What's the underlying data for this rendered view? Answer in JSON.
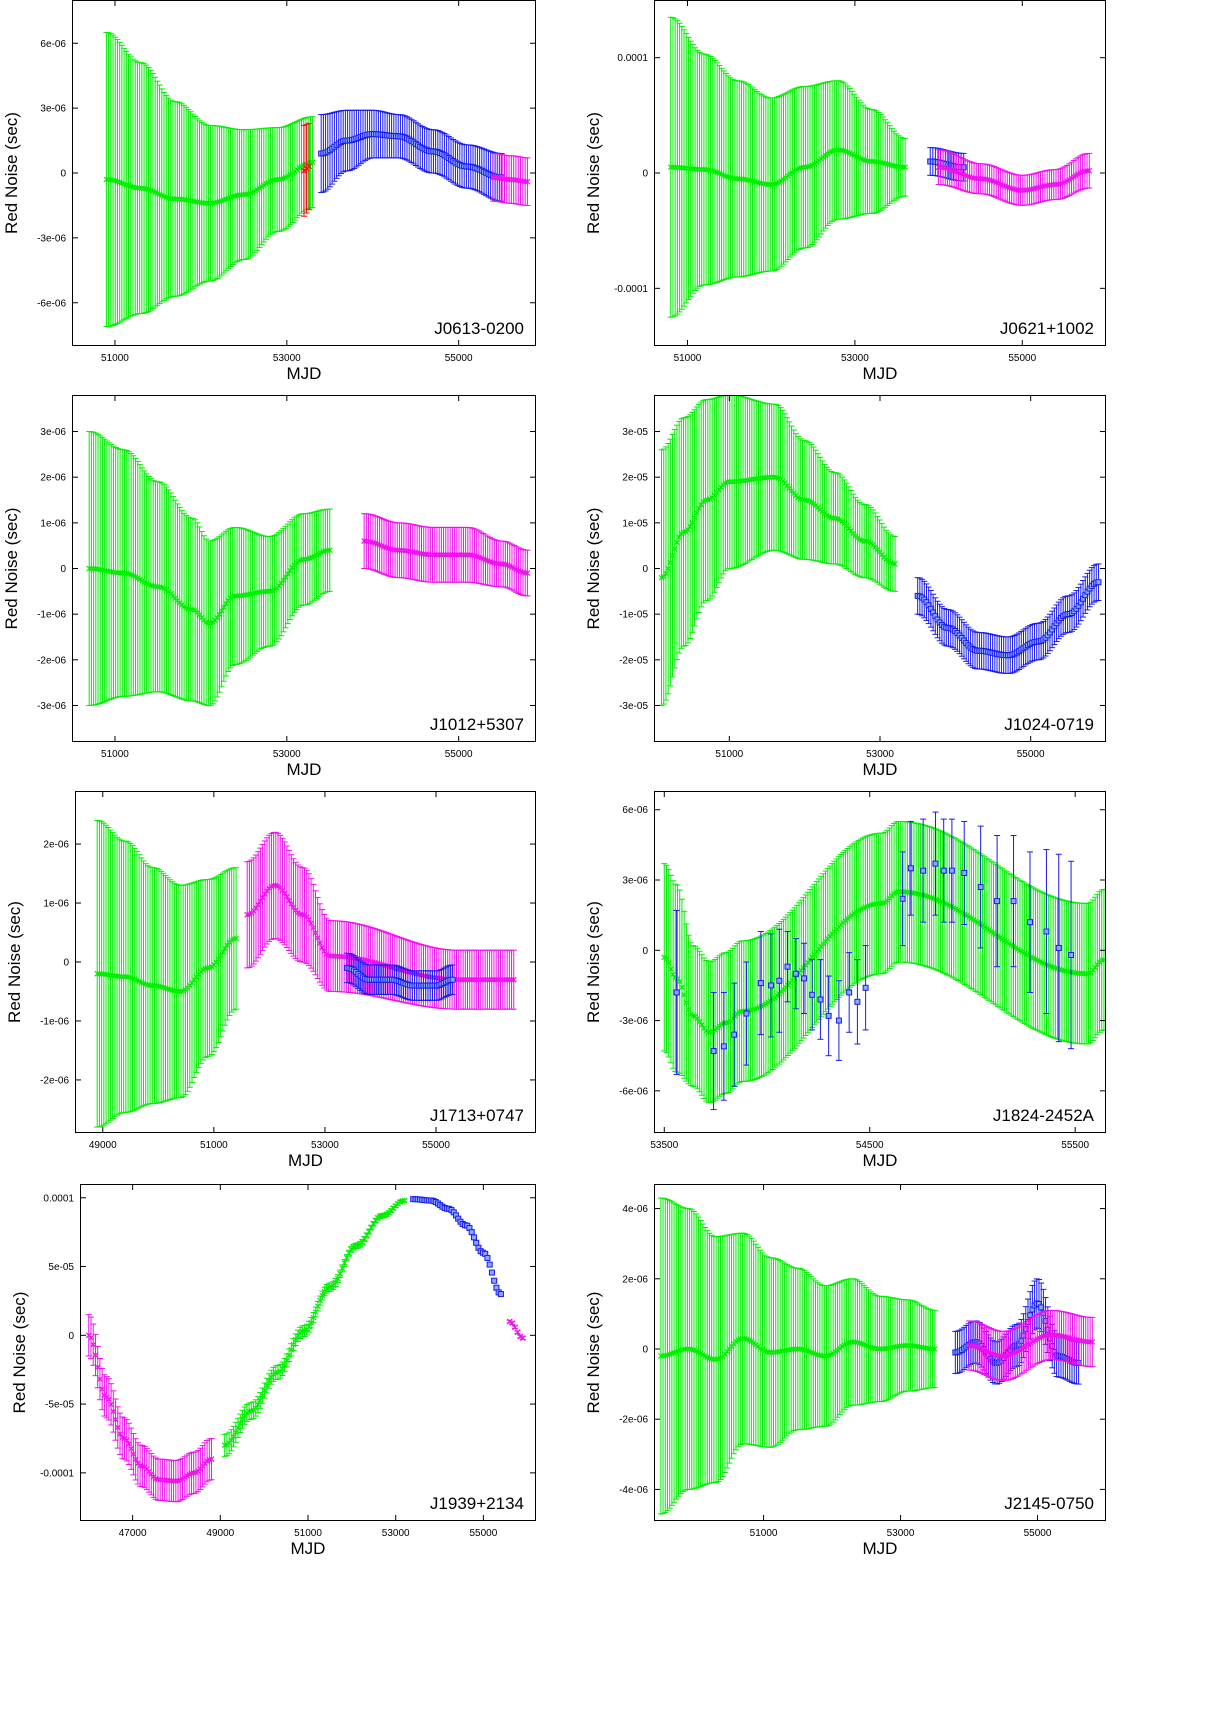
{
  "figure": {
    "panels_layout": "4 rows x 2 columns"
  },
  "colors": {
    "green": "#00ee00",
    "blue": "#1a1aee",
    "magenta": "#ee11ee",
    "red": "#ee1111"
  },
  "chart_data": [
    {
      "type": "scatter",
      "label": "J0613-0200",
      "xlabel": "MJD",
      "ylabel": "Red Noise (sec)",
      "xlim": [
        50500,
        55900
      ],
      "ylim": [
        -8e-06,
        8e-06
      ],
      "xticks": [
        51000,
        53000,
        55000
      ],
      "xtick_labels": [
        "51000",
        "53000",
        "55000"
      ],
      "yticks": [
        -6e-06,
        -3e-06,
        0,
        3e-06,
        6e-06
      ],
      "ytick_labels": [
        "-6e-06",
        "-3e-06",
        "0",
        "3e-06",
        "6e-06"
      ],
      "series": [
        {
          "color": "green",
          "x": [
            50900,
            51300,
            51700,
            52100,
            52500,
            52900,
            53300
          ],
          "y": [
            -3e-07,
            -7e-07,
            -1.2e-06,
            -1.4e-06,
            -1e-06,
            -3e-07,
            5e-07
          ],
          "err": [
            6.8e-06,
            5.8e-06,
            4.5e-06,
            3.6e-06,
            3e-06,
            2.4e-06,
            2.1e-06
          ]
        },
        {
          "color": "red",
          "x": [
            53200,
            53260
          ],
          "y": [
            1e-07,
            3e-07
          ],
          "err": [
            2.1e-06,
            2e-06
          ]
        },
        {
          "color": "blue",
          "x": [
            53400,
            53700,
            54000,
            54300,
            54700,
            55100,
            55500
          ],
          "y": [
            9e-07,
            1.5e-06,
            1.8e-06,
            1.7e-06,
            1e-06,
            3e-07,
            -2e-07
          ],
          "err": [
            1.8e-06,
            1.4e-06,
            1.1e-06,
            1e-06,
            1e-06,
            1e-06,
            1.1e-06
          ]
        },
        {
          "color": "magenta",
          "x": [
            55400,
            55600,
            55800
          ],
          "y": [
            -2e-07,
            -3e-07,
            -4e-07
          ],
          "err": [
            1.1e-06,
            1.1e-06,
            1.1e-06
          ]
        }
      ]
    },
    {
      "type": "scatter",
      "label": "J0621+1002",
      "xlabel": "MJD",
      "ylabel": "Red Noise (sec)",
      "xlim": [
        50600,
        56000
      ],
      "ylim": [
        -0.00015,
        0.00015
      ],
      "xticks": [
        51000,
        53000,
        55000
      ],
      "xtick_labels": [
        "51000",
        "53000",
        "55000"
      ],
      "yticks": [
        -0.0001,
        0,
        0.0001
      ],
      "ytick_labels": [
        "-0.0001",
        "0",
        "0.0001"
      ],
      "series": [
        {
          "color": "green",
          "x": [
            50800,
            51200,
            51600,
            52000,
            52400,
            52800,
            53200,
            53600
          ],
          "y": [
            5e-06,
            3e-06,
            -5e-06,
            -1e-05,
            5e-06,
            2e-05,
            1e-05,
            5e-06
          ],
          "err": [
            0.00013,
            0.0001,
            8.5e-05,
            7.5e-05,
            7e-05,
            6e-05,
            4.5e-05,
            2.5e-05
          ]
        },
        {
          "color": "blue",
          "x": [
            53900,
            54300
          ],
          "y": [
            1e-05,
            5e-06
          ],
          "err": [
            1.2e-05,
            1.2e-05
          ]
        },
        {
          "color": "magenta",
          "x": [
            54000,
            54500,
            55000,
            55400,
            55800
          ],
          "y": [
            5e-06,
            -5e-06,
            -1.5e-05,
            -1e-05,
            2e-06
          ],
          "err": [
            1.5e-05,
            1.3e-05,
            1.3e-05,
            1.3e-05,
            1.5e-05
          ]
        }
      ]
    },
    {
      "type": "scatter",
      "label": "J1012+5307",
      "xlabel": "MJD",
      "ylabel": "Red Noise (sec)",
      "xlim": [
        50500,
        55900
      ],
      "ylim": [
        -3.8e-06,
        3.8e-06
      ],
      "xticks": [
        51000,
        53000,
        55000
      ],
      "xtick_labels": [
        "51000",
        "53000",
        "55000"
      ],
      "yticks": [
        -3e-06,
        -2e-06,
        -1e-06,
        0,
        1e-06,
        2e-06,
        3e-06
      ],
      "ytick_labels": [
        "-3e-06",
        "-2e-06",
        "-1e-06",
        "0",
        "1e-06",
        "2e-06",
        "3e-06"
      ],
      "series": [
        {
          "color": "green",
          "x": [
            50700,
            51100,
            51500,
            51900,
            52100,
            52400,
            52800,
            53200,
            53500
          ],
          "y": [
            0,
            -1e-07,
            -4e-07,
            -9e-07,
            -1.2e-06,
            -6e-07,
            -5e-07,
            2e-07,
            4e-07
          ],
          "err": [
            3e-06,
            2.7e-06,
            2.3e-06,
            2e-06,
            1.8e-06,
            1.5e-06,
            1.2e-06,
            1e-06,
            9e-07
          ]
        },
        {
          "color": "magenta",
          "x": [
            53900,
            54300,
            54700,
            55100,
            55500,
            55800
          ],
          "y": [
            6e-07,
            4e-07,
            3e-07,
            3e-07,
            1e-07,
            -1e-07
          ],
          "err": [
            6e-07,
            6e-07,
            6e-07,
            6e-07,
            5e-07,
            5e-07
          ]
        }
      ]
    },
    {
      "type": "scatter",
      "label": "J1024-0719",
      "xlabel": "MJD",
      "ylabel": "Red Noise (sec)",
      "xlim": [
        50000,
        56000
      ],
      "ylim": [
        -3.8e-05,
        3.8e-05
      ],
      "xticks": [
        51000,
        53000,
        55000
      ],
      "xtick_labels": [
        "51000",
        "53000",
        "55000"
      ],
      "yticks": [
        -3e-05,
        -2e-05,
        -1e-05,
        0,
        1e-05,
        2e-05,
        3e-05
      ],
      "ytick_labels": [
        "-3e-05",
        "-2e-05",
        "-1e-05",
        "0",
        "1e-05",
        "2e-05",
        "3e-05"
      ],
      "series": [
        {
          "color": "green",
          "x": [
            50100,
            50400,
            50700,
            51000,
            51600,
            52000,
            52400,
            52800,
            53200
          ],
          "y": [
            -2e-06,
            8e-06,
            1.5e-05,
            1.9e-05,
            2e-05,
            1.5e-05,
            1.1e-05,
            6e-06,
            1e-06
          ],
          "err": [
            2.8e-05,
            2.5e-05,
            2.2e-05,
            1.9e-05,
            1.6e-05,
            1.3e-05,
            1e-05,
            8e-06,
            6e-06
          ]
        },
        {
          "color": "blue",
          "x": [
            53500,
            53900,
            54300,
            54700,
            55100,
            55500,
            55900
          ],
          "y": [
            -6e-06,
            -1.3e-05,
            -1.8e-05,
            -1.9e-05,
            -1.6e-05,
            -1e-05,
            -3e-06
          ],
          "err": [
            4e-06,
            4e-06,
            4e-06,
            4e-06,
            4e-06,
            4e-06,
            4e-06
          ]
        }
      ]
    },
    {
      "type": "scatter",
      "label": "J1713+0747",
      "xlabel": "MJD",
      "ylabel": "Red Noise (sec)",
      "xlim": [
        48500,
        56800
      ],
      "ylim": [
        -2.9e-06,
        2.9e-06
      ],
      "xticks": [
        49000,
        51000,
        53000,
        55000
      ],
      "xtick_labels": [
        "49000",
        "51000",
        "53000",
        "55000"
      ],
      "yticks": [
        -2e-06,
        -1e-06,
        0,
        1e-06,
        2e-06
      ],
      "ytick_labels": [
        "-2e-06",
        "-1e-06",
        "0",
        "1e-06",
        "2e-06"
      ],
      "series": [
        {
          "color": "green",
          "x": [
            48900,
            49400,
            49900,
            50400,
            50900,
            51400
          ],
          "y": [
            -2e-07,
            -2.5e-07,
            -4e-07,
            -5e-07,
            -1e-07,
            4e-07
          ],
          "err": [
            2.6e-06,
            2.3e-06,
            2e-06,
            1.8e-06,
            1.5e-06,
            1.2e-06
          ]
        },
        {
          "color": "magenta",
          "x": [
            51600,
            52100,
            52600,
            53100,
            55400,
            55900,
            56400
          ],
          "y": [
            8e-07,
            1.3e-06,
            8e-07,
            1e-07,
            -3e-07,
            -3e-07,
            -3e-07
          ],
          "err": [
            9e-07,
            9e-07,
            8e-07,
            6e-07,
            5e-07,
            5e-07,
            5e-07
          ]
        },
        {
          "color": "blue",
          "x": [
            53400,
            53800,
            54200,
            54600,
            55000,
            55300
          ],
          "y": [
            -1e-07,
            -3e-07,
            -3e-07,
            -4e-07,
            -4e-07,
            -3e-07
          ],
          "err": [
            2.5e-07,
            2.5e-07,
            2.5e-07,
            2.5e-07,
            2.5e-07,
            2.5e-07
          ]
        }
      ]
    },
    {
      "type": "scatter",
      "label": "J1824-2452A",
      "xlabel": "MJD",
      "ylabel": "Red Noise (sec)",
      "xlim": [
        53450,
        55650
      ],
      "ylim": [
        -7.8e-06,
        6.8e-06
      ],
      "xticks": [
        53500,
        54500,
        55500
      ],
      "xtick_labels": [
        "53500",
        "54500",
        "55500"
      ],
      "yticks": [
        -6e-06,
        -3e-06,
        0,
        3e-06,
        6e-06
      ],
      "ytick_labels": [
        "-6e-06",
        "-3e-06",
        "0",
        "3e-06",
        "6e-06"
      ],
      "series": [
        {
          "color": "green",
          "x": [
            53500,
            53560,
            53640,
            53720,
            53800,
            53880,
            54560,
            54640,
            55560,
            55640
          ],
          "y": [
            -3e-07,
            -1.2e-06,
            -2.8e-06,
            -3.5e-06,
            -3.1e-06,
            -2.6e-06,
            2e-06,
            2.5e-06,
            -1e-06,
            -4e-07
          ],
          "err": [
            4e-06,
            4e-06,
            3e-06,
            3e-06,
            3e-06,
            3e-06,
            3e-06,
            3e-06,
            3e-06,
            3e-06
          ]
        },
        {
          "color": "blue",
          "x": [
            53560,
            53740,
            53790,
            53840,
            53900,
            53970,
            54020,
            54060,
            54100,
            54140,
            54180,
            54220,
            54260,
            54300,
            54350,
            54400,
            54440,
            54480,
            54660,
            54700,
            54760,
            54820,
            54860,
            54900,
            54960,
            55040,
            55120,
            55200,
            55280,
            55360,
            55420,
            55480
          ],
          "y": [
            -1.8e-06,
            -4.3e-06,
            -4.1e-06,
            -3.6e-06,
            -2.7e-06,
            -1.4e-06,
            -1.5e-06,
            -1.3e-06,
            -7e-07,
            -1e-06,
            -1.2e-06,
            -1.9e-06,
            -2.1e-06,
            -2.8e-06,
            -3e-06,
            -1.8e-06,
            -2.2e-06,
            -1.6e-06,
            2.2e-06,
            3.5e-06,
            3.4e-06,
            3.7e-06,
            3.4e-06,
            3.4e-06,
            3.3e-06,
            2.7e-06,
            2.1e-06,
            2.1e-06,
            1.2e-06,
            8e-07,
            1e-07,
            -2e-07
          ],
          "err": [
            3.5e-06,
            2.5e-06,
            2.3e-06,
            2.2e-06,
            2.2e-06,
            2.2e-06,
            2.2e-06,
            2.2e-06,
            1.5e-06,
            1.5e-06,
            1.5e-06,
            1.5e-06,
            1.7e-06,
            1.7e-06,
            1.7e-06,
            1.7e-06,
            1.8e-06,
            1.8e-06,
            2e-06,
            2e-06,
            2.2e-06,
            2.2e-06,
            2.2e-06,
            2.2e-06,
            2.2e-06,
            2.6e-06,
            2.8e-06,
            2.8e-06,
            3e-06,
            3.5e-06,
            4e-06,
            4e-06
          ]
        }
      ]
    },
    {
      "type": "scatter",
      "label": "J1939+2134",
      "xlabel": "MJD",
      "ylabel": "Red Noise (sec)",
      "xlim": [
        45800,
        56200
      ],
      "ylim": [
        -0.000135,
        0.00011
      ],
      "xticks": [
        47000,
        49000,
        51000,
        53000,
        55000
      ],
      "xtick_labels": [
        "47000",
        "49000",
        "51000",
        "53000",
        "55000"
      ],
      "yticks": [
        -0.0001,
        -5e-05,
        0,
        5e-05,
        0.0001
      ],
      "ytick_labels": [
        "-0.0001",
        "-5e-05",
        "0",
        "5e-05",
        "0.0001"
      ],
      "series": [
        {
          "color": "magenta",
          "x": [
            46000,
            46400,
            46800,
            47200,
            47600,
            48000,
            48400,
            48800
          ],
          "y": [
            0,
            -4.5e-05,
            -7.5e-05,
            -9.5e-05,
            -0.000105,
            -0.000106,
            -0.0001,
            -9e-05
          ],
          "err": [
            1.5e-05,
            1.5e-05,
            1.5e-05,
            1.5e-05,
            1.5e-05,
            1.5e-05,
            1.5e-05,
            1.5e-05
          ]
        },
        {
          "color": "green",
          "x": [
            49100,
            49700,
            50300,
            50900,
            51500,
            52100,
            52700,
            53200
          ],
          "y": [
            -8e-05,
            -5.5e-05,
            -2.7e-05,
            3e-06,
            3.5e-05,
            6.5e-05,
            8.7e-05,
            9.8e-05
          ],
          "err": [
            8e-06,
            6e-06,
            5e-06,
            4e-06,
            3e-06,
            2e-06,
            1.5e-06,
            1e-06
          ]
        },
        {
          "color": "blue",
          "x": [
            53400,
            53800,
            54200,
            54600,
            55000,
            55400
          ],
          "y": [
            9.9e-05,
            9.8e-05,
            9.2e-05,
            8e-05,
            6e-05,
            3e-05
          ],
          "err": [
            1e-06,
            1e-06,
            1e-06,
            1e-06,
            1e-06,
            1e-06
          ]
        },
        {
          "color": "magenta",
          "x": [
            55600,
            55900
          ],
          "y": [
            1e-05,
            -2e-06
          ],
          "err": [
            1e-06,
            1e-06
          ]
        }
      ]
    },
    {
      "type": "scatter",
      "label": "J2145-0750",
      "xlabel": "MJD",
      "ylabel": "Red Noise (sec)",
      "xlim": [
        49400,
        56000
      ],
      "ylim": [
        -4.9e-06,
        4.7e-06
      ],
      "xticks": [
        51000,
        53000,
        55000
      ],
      "xtick_labels": [
        "51000",
        "53000",
        "55000"
      ],
      "yticks": [
        -4e-06,
        -2e-06,
        0,
        2e-06,
        4e-06
      ],
      "ytick_labels": [
        "-4e-06",
        "-2e-06",
        "0",
        "2e-06",
        "4e-06"
      ],
      "series": [
        {
          "color": "green",
          "x": [
            49500,
            49900,
            50300,
            50700,
            51100,
            51500,
            51900,
            52300,
            52700,
            53100,
            53500
          ],
          "y": [
            -2e-07,
            0,
            -3e-07,
            3e-07,
            -1e-07,
            0,
            -2e-07,
            2e-07,
            0,
            1e-07,
            0
          ],
          "err": [
            4.5e-06,
            4e-06,
            3.5e-06,
            3e-06,
            2.7e-06,
            2.3e-06,
            2e-06,
            1.8e-06,
            1.5e-06,
            1.3e-06,
            1.1e-06
          ]
        },
        {
          "color": "blue",
          "x": [
            53800,
            54100,
            54400,
            54700,
            55000,
            55300,
            55600
          ],
          "y": [
            -1e-07,
            2e-07,
            -4e-07,
            1e-07,
            1.3e-06,
            -2e-07,
            -4e-07
          ],
          "err": [
            6e-07,
            6e-07,
            6e-07,
            6e-07,
            7e-07,
            6e-07,
            6e-07
          ]
        },
        {
          "color": "magenta",
          "x": [
            54000,
            54500,
            55200,
            55800
          ],
          "y": [
            1e-07,
            -2e-07,
            4e-07,
            2e-07
          ],
          "err": [
            7e-07,
            7e-07,
            7e-07,
            7e-07
          ]
        }
      ]
    }
  ]
}
